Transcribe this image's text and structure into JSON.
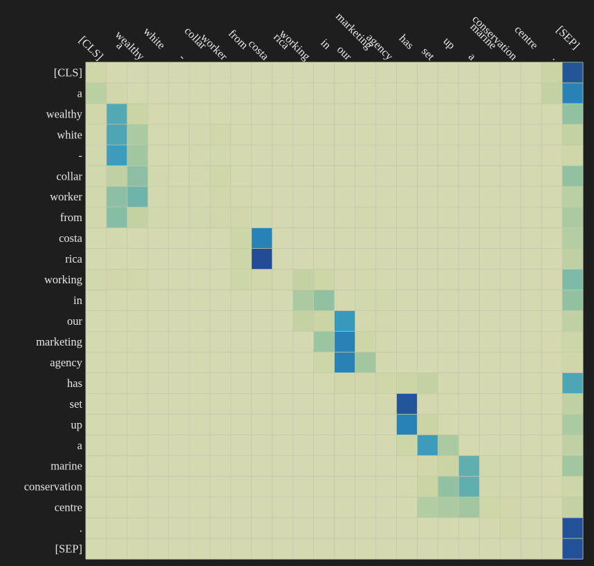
{
  "chart_data": {
    "type": "heatmap",
    "title": "",
    "xlabel": "",
    "ylabel": "",
    "x_labels": [
      "[CLS]",
      "a",
      "wealthy",
      "white",
      "-",
      "collar",
      "worker",
      "from",
      "costa",
      "rica",
      "working",
      "in",
      "our",
      "marketing",
      "agency",
      "has",
      "set",
      "up",
      "a",
      "marine",
      "conservation",
      "centre",
      ".",
      "[SEP]"
    ],
    "y_labels": [
      "[CLS]",
      "a",
      "wealthy",
      "white",
      "-",
      "collar",
      "worker",
      "from",
      "costa",
      "rica",
      "working",
      "in",
      "our",
      "marketing",
      "agency",
      "has",
      "set",
      "up",
      "a",
      "marine",
      "conservation",
      "centre",
      ".",
      "[SEP]"
    ],
    "values": [
      [
        0.1,
        0.04,
        0.03,
        0.03,
        0.03,
        0.03,
        0.03,
        0.03,
        0.03,
        0.03,
        0.03,
        0.03,
        0.03,
        0.03,
        0.03,
        0.03,
        0.03,
        0.03,
        0.03,
        0.03,
        0.03,
        0.03,
        0.15,
        0.95
      ],
      [
        0.22,
        0.08,
        0.04,
        0.03,
        0.03,
        0.03,
        0.03,
        0.03,
        0.03,
        0.03,
        0.03,
        0.03,
        0.03,
        0.03,
        0.03,
        0.03,
        0.03,
        0.03,
        0.03,
        0.03,
        0.03,
        0.03,
        0.18,
        0.8
      ],
      [
        0.08,
        0.6,
        0.15,
        0.04,
        0.04,
        0.04,
        0.04,
        0.03,
        0.03,
        0.03,
        0.03,
        0.03,
        0.03,
        0.03,
        0.03,
        0.03,
        0.03,
        0.03,
        0.03,
        0.03,
        0.03,
        0.03,
        0.04,
        0.38
      ],
      [
        0.06,
        0.62,
        0.28,
        0.04,
        0.04,
        0.05,
        0.08,
        0.04,
        0.03,
        0.03,
        0.03,
        0.03,
        0.03,
        0.03,
        0.03,
        0.03,
        0.03,
        0.03,
        0.03,
        0.03,
        0.03,
        0.03,
        0.04,
        0.18
      ],
      [
        0.06,
        0.68,
        0.32,
        0.04,
        0.04,
        0.05,
        0.06,
        0.04,
        0.03,
        0.03,
        0.03,
        0.03,
        0.03,
        0.03,
        0.03,
        0.03,
        0.03,
        0.03,
        0.03,
        0.03,
        0.03,
        0.03,
        0.04,
        0.1
      ],
      [
        0.06,
        0.2,
        0.4,
        0.06,
        0.04,
        0.05,
        0.1,
        0.04,
        0.03,
        0.03,
        0.03,
        0.03,
        0.03,
        0.03,
        0.03,
        0.03,
        0.03,
        0.03,
        0.03,
        0.03,
        0.03,
        0.03,
        0.04,
        0.38
      ],
      [
        0.06,
        0.4,
        0.5,
        0.05,
        0.05,
        0.05,
        0.08,
        0.05,
        0.03,
        0.03,
        0.03,
        0.03,
        0.03,
        0.03,
        0.03,
        0.03,
        0.03,
        0.03,
        0.03,
        0.03,
        0.03,
        0.03,
        0.04,
        0.22
      ],
      [
        0.06,
        0.42,
        0.18,
        0.06,
        0.05,
        0.06,
        0.08,
        0.08,
        0.06,
        0.03,
        0.03,
        0.03,
        0.03,
        0.05,
        0.03,
        0.03,
        0.03,
        0.03,
        0.03,
        0.03,
        0.03,
        0.03,
        0.04,
        0.28
      ],
      [
        0.04,
        0.05,
        0.04,
        0.03,
        0.03,
        0.03,
        0.03,
        0.12,
        0.8,
        0.03,
        0.03,
        0.03,
        0.03,
        0.03,
        0.03,
        0.03,
        0.03,
        0.03,
        0.03,
        0.03,
        0.03,
        0.03,
        0.04,
        0.24
      ],
      [
        0.04,
        0.04,
        0.04,
        0.03,
        0.03,
        0.03,
        0.03,
        0.12,
        0.98,
        0.03,
        0.03,
        0.03,
        0.03,
        0.03,
        0.03,
        0.03,
        0.03,
        0.03,
        0.03,
        0.03,
        0.03,
        0.03,
        0.04,
        0.2
      ],
      [
        0.06,
        0.08,
        0.08,
        0.03,
        0.03,
        0.03,
        0.03,
        0.12,
        0.08,
        0.05,
        0.18,
        0.12,
        0.05,
        0.05,
        0.03,
        0.03,
        0.03,
        0.03,
        0.03,
        0.03,
        0.03,
        0.03,
        0.04,
        0.45
      ],
      [
        0.04,
        0.04,
        0.04,
        0.03,
        0.03,
        0.03,
        0.03,
        0.03,
        0.03,
        0.03,
        0.28,
        0.38,
        0.05,
        0.06,
        0.06,
        0.03,
        0.03,
        0.03,
        0.03,
        0.03,
        0.03,
        0.03,
        0.04,
        0.38
      ],
      [
        0.04,
        0.04,
        0.04,
        0.03,
        0.03,
        0.03,
        0.03,
        0.03,
        0.03,
        0.03,
        0.18,
        0.15,
        0.7,
        0.05,
        0.05,
        0.03,
        0.03,
        0.03,
        0.03,
        0.03,
        0.03,
        0.03,
        0.04,
        0.2
      ],
      [
        0.04,
        0.04,
        0.04,
        0.03,
        0.03,
        0.03,
        0.03,
        0.03,
        0.03,
        0.03,
        0.03,
        0.35,
        0.8,
        0.12,
        0.05,
        0.03,
        0.03,
        0.03,
        0.03,
        0.03,
        0.03,
        0.03,
        0.04,
        0.12
      ],
      [
        0.04,
        0.04,
        0.04,
        0.03,
        0.03,
        0.03,
        0.03,
        0.03,
        0.03,
        0.03,
        0.03,
        0.12,
        0.8,
        0.32,
        0.05,
        0.03,
        0.03,
        0.03,
        0.03,
        0.03,
        0.03,
        0.03,
        0.04,
        0.1
      ],
      [
        0.04,
        0.04,
        0.04,
        0.03,
        0.03,
        0.03,
        0.03,
        0.03,
        0.03,
        0.03,
        0.03,
        0.04,
        0.08,
        0.08,
        0.1,
        0.14,
        0.18,
        0.05,
        0.03,
        0.03,
        0.03,
        0.03,
        0.04,
        0.62
      ],
      [
        0.04,
        0.04,
        0.04,
        0.03,
        0.03,
        0.03,
        0.03,
        0.03,
        0.03,
        0.03,
        0.03,
        0.03,
        0.03,
        0.03,
        0.05,
        0.95,
        0.05,
        0.04,
        0.03,
        0.03,
        0.03,
        0.03,
        0.04,
        0.2
      ],
      [
        0.04,
        0.04,
        0.04,
        0.03,
        0.03,
        0.03,
        0.03,
        0.03,
        0.03,
        0.03,
        0.03,
        0.03,
        0.03,
        0.03,
        0.03,
        0.8,
        0.15,
        0.04,
        0.03,
        0.03,
        0.03,
        0.03,
        0.04,
        0.28
      ],
      [
        0.04,
        0.04,
        0.04,
        0.03,
        0.03,
        0.03,
        0.03,
        0.03,
        0.03,
        0.03,
        0.03,
        0.03,
        0.03,
        0.03,
        0.03,
        0.12,
        0.68,
        0.28,
        0.04,
        0.03,
        0.03,
        0.03,
        0.04,
        0.2
      ],
      [
        0.04,
        0.04,
        0.04,
        0.03,
        0.03,
        0.03,
        0.03,
        0.03,
        0.03,
        0.03,
        0.03,
        0.03,
        0.03,
        0.03,
        0.03,
        0.04,
        0.08,
        0.15,
        0.55,
        0.06,
        0.06,
        0.05,
        0.04,
        0.32
      ],
      [
        0.04,
        0.04,
        0.04,
        0.03,
        0.03,
        0.03,
        0.03,
        0.03,
        0.03,
        0.03,
        0.03,
        0.03,
        0.03,
        0.03,
        0.03,
        0.04,
        0.15,
        0.38,
        0.55,
        0.06,
        0.06,
        0.05,
        0.04,
        0.12
      ],
      [
        0.04,
        0.04,
        0.04,
        0.03,
        0.03,
        0.03,
        0.03,
        0.03,
        0.03,
        0.03,
        0.03,
        0.03,
        0.03,
        0.03,
        0.03,
        0.04,
        0.25,
        0.28,
        0.32,
        0.1,
        0.08,
        0.05,
        0.04,
        0.18
      ],
      [
        0.04,
        0.04,
        0.04,
        0.03,
        0.03,
        0.03,
        0.03,
        0.03,
        0.03,
        0.03,
        0.03,
        0.03,
        0.03,
        0.03,
        0.03,
        0.03,
        0.04,
        0.04,
        0.04,
        0.05,
        0.08,
        0.05,
        0.05,
        0.96
      ],
      [
        0.04,
        0.04,
        0.04,
        0.03,
        0.03,
        0.03,
        0.03,
        0.03,
        0.03,
        0.03,
        0.03,
        0.03,
        0.03,
        0.03,
        0.03,
        0.03,
        0.03,
        0.03,
        0.03,
        0.03,
        0.03,
        0.05,
        0.05,
        0.96
      ]
    ],
    "vmin": 0,
    "vmax": 1,
    "colormap": "YlGnBu",
    "colorbar": false,
    "grid": true,
    "background_color": "#1e1e1e",
    "label_color": "#e6e6e6",
    "gridline_color": "#c2c8a8"
  }
}
